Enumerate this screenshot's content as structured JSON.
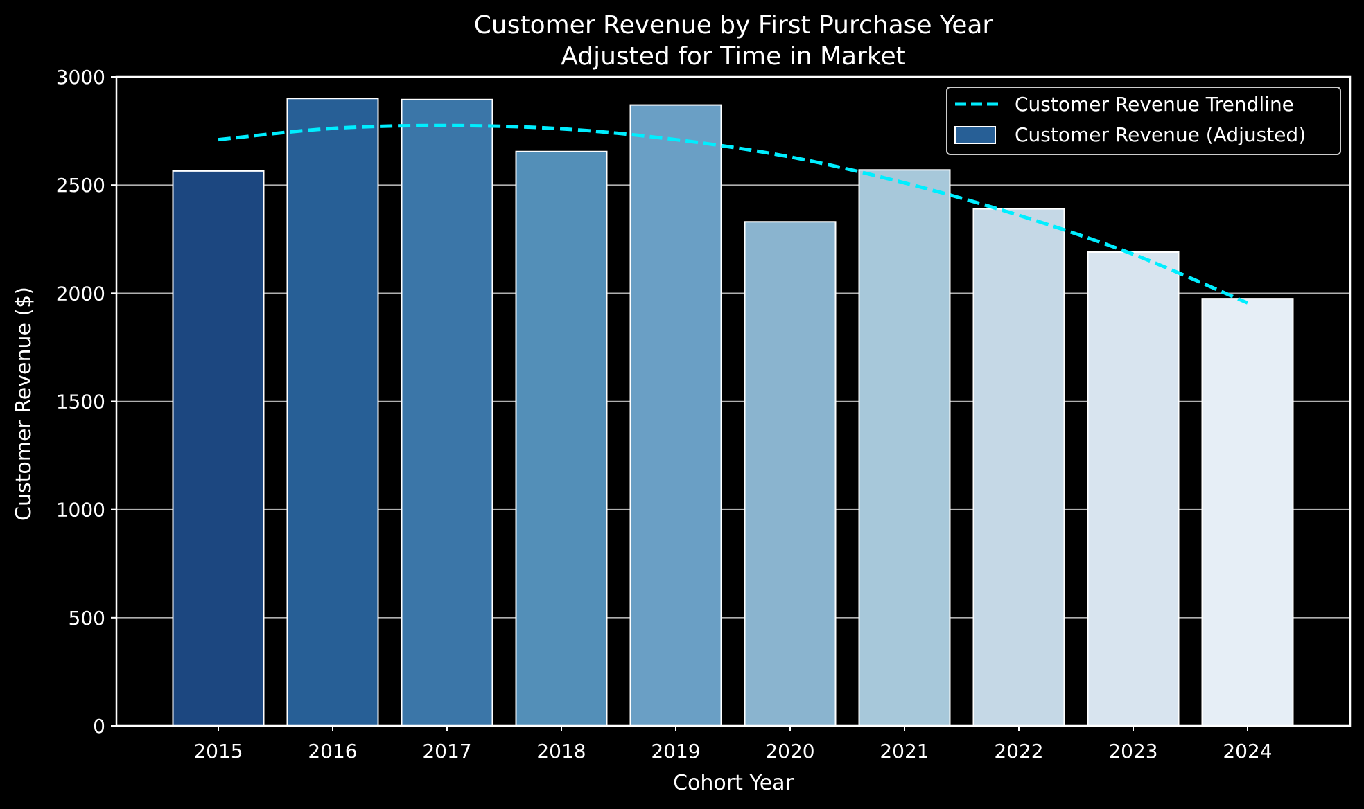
{
  "chart_data": {
    "type": "bar",
    "title": "Customer Revenue by First Purchase Year",
    "subtitle": "Adjusted for Time in Market",
    "xlabel": "Cohort Year",
    "ylabel": "Customer Revenue ($)",
    "categories": [
      "2015",
      "2016",
      "2017",
      "2018",
      "2019",
      "2020",
      "2021",
      "2022",
      "2023",
      "2024"
    ],
    "ylim": [
      0,
      3000
    ],
    "yticks": [
      0,
      500,
      1000,
      1500,
      2000,
      2500,
      3000
    ],
    "grid": "horizontal",
    "legend_position": "top-right",
    "series": [
      {
        "name": "Customer Revenue (Adjusted)",
        "kind": "bar",
        "values": [
          2565,
          2900,
          2895,
          2655,
          2870,
          2330,
          2570,
          2390,
          2190,
          1975
        ],
        "colors": [
          "#1c4780",
          "#275f96",
          "#3b76a8",
          "#538fb8",
          "#6a9fc5",
          "#8ab4cf",
          "#a7c8da",
          "#c5d8e6",
          "#d8e4ef",
          "#e6eef6"
        ]
      },
      {
        "name": "Customer Revenue Trendline",
        "kind": "line",
        "style": "dashed",
        "color": "#00eeff",
        "values": [
          2710,
          2762,
          2775,
          2760,
          2710,
          2630,
          2510,
          2360,
          2180,
          1955
        ]
      }
    ]
  }
}
